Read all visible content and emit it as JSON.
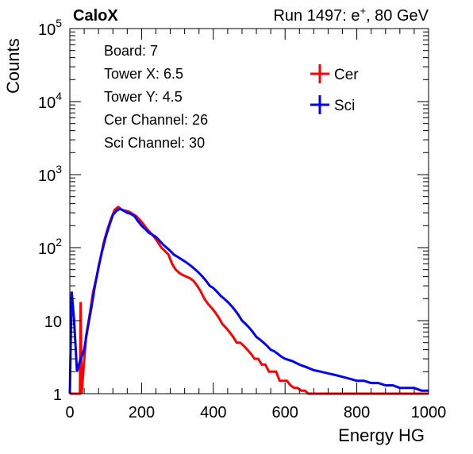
{
  "header": {
    "experiment": "CaloX",
    "run_label": "Run 1497: e",
    "run_sup": "+",
    "run_energy": ", 80 GeV"
  },
  "info_box": [
    "Board: 7",
    "Tower X: 6.5",
    "Tower Y: 4.5",
    "Cer Channel: 26",
    "Sci Channel: 30"
  ],
  "chart_data": {
    "type": "line",
    "xlabel": "Energy HG",
    "ylabel": "Counts",
    "xlim": [
      0,
      1000
    ],
    "ylim": [
      1,
      100000
    ],
    "yscale": "log",
    "x_ticks": [
      "0",
      "200",
      "400",
      "600",
      "800",
      "1000"
    ],
    "y_ticks": [
      {
        "value": 1,
        "base": "1",
        "exp": ""
      },
      {
        "value": 10,
        "base": "10",
        "exp": ""
      },
      {
        "value": 100,
        "base": "10",
        "exp": "2"
      },
      {
        "value": 1000,
        "base": "10",
        "exp": "3"
      },
      {
        "value": 10000,
        "base": "10",
        "exp": "4"
      },
      {
        "value": 100000,
        "base": "10",
        "exp": "5"
      }
    ],
    "legend_position": "top-right",
    "series": [
      {
        "name": "Cer",
        "color": "#ff0000",
        "points": [
          [
            0,
            0
          ],
          [
            15,
            0
          ],
          [
            28,
            0
          ],
          [
            30,
            18
          ],
          [
            33,
            0
          ],
          [
            45,
            6
          ],
          [
            55,
            12
          ],
          [
            65,
            25
          ],
          [
            75,
            40
          ],
          [
            85,
            70
          ],
          [
            95,
            120
          ],
          [
            105,
            180
          ],
          [
            115,
            250
          ],
          [
            125,
            330
          ],
          [
            135,
            360
          ],
          [
            145,
            330
          ],
          [
            155,
            320
          ],
          [
            165,
            310
          ],
          [
            175,
            290
          ],
          [
            185,
            270
          ],
          [
            195,
            240
          ],
          [
            205,
            210
          ],
          [
            215,
            180
          ],
          [
            225,
            160
          ],
          [
            235,
            140
          ],
          [
            245,
            120
          ],
          [
            255,
            100
          ],
          [
            265,
            90
          ],
          [
            275,
            80
          ],
          [
            285,
            60
          ],
          [
            295,
            50
          ],
          [
            305,
            45
          ],
          [
            315,
            42
          ],
          [
            325,
            40
          ],
          [
            335,
            38
          ],
          [
            345,
            35
          ],
          [
            355,
            30
          ],
          [
            365,
            25
          ],
          [
            375,
            20
          ],
          [
            385,
            17
          ],
          [
            395,
            15
          ],
          [
            405,
            13
          ],
          [
            415,
            11
          ],
          [
            425,
            9
          ],
          [
            435,
            8
          ],
          [
            445,
            7
          ],
          [
            455,
            6
          ],
          [
            465,
            5
          ],
          [
            475,
            5
          ],
          [
            485,
            4.5
          ],
          [
            495,
            4
          ],
          [
            505,
            3.5
          ],
          [
            515,
            3
          ],
          [
            525,
            3
          ],
          [
            535,
            2.5
          ],
          [
            545,
            2.5
          ],
          [
            555,
            2
          ],
          [
            565,
            2
          ],
          [
            575,
            2
          ],
          [
            585,
            1.5
          ],
          [
            595,
            1.5
          ],
          [
            605,
            1.5
          ],
          [
            615,
            1.3
          ],
          [
            625,
            1.2
          ],
          [
            635,
            1.2
          ],
          [
            645,
            1.1
          ],
          [
            655,
            1.1
          ],
          [
            665,
            1
          ],
          [
            675,
            1
          ],
          [
            700,
            1
          ],
          [
            750,
            1
          ],
          [
            800,
            1
          ],
          [
            850,
            1
          ],
          [
            900,
            1
          ],
          [
            950,
            1
          ],
          [
            1000,
            1
          ]
        ]
      },
      {
        "name": "Sci",
        "color": "#0000ff",
        "points": [
          [
            0,
            0
          ],
          [
            5,
            25
          ],
          [
            12,
            10
          ],
          [
            20,
            2
          ],
          [
            30,
            3
          ],
          [
            40,
            4
          ],
          [
            50,
            8
          ],
          [
            60,
            15
          ],
          [
            70,
            30
          ],
          [
            80,
            55
          ],
          [
            90,
            90
          ],
          [
            100,
            140
          ],
          [
            110,
            200
          ],
          [
            120,
            280
          ],
          [
            130,
            320
          ],
          [
            140,
            340
          ],
          [
            150,
            320
          ],
          [
            160,
            300
          ],
          [
            170,
            290
          ],
          [
            180,
            270
          ],
          [
            190,
            230
          ],
          [
            200,
            200
          ],
          [
            210,
            180
          ],
          [
            220,
            160
          ],
          [
            230,
            150
          ],
          [
            240,
            140
          ],
          [
            250,
            125
          ],
          [
            260,
            110
          ],
          [
            270,
            100
          ],
          [
            280,
            90
          ],
          [
            290,
            80
          ],
          [
            300,
            75
          ],
          [
            310,
            70
          ],
          [
            320,
            65
          ],
          [
            330,
            60
          ],
          [
            340,
            55
          ],
          [
            350,
            50
          ],
          [
            360,
            45
          ],
          [
            370,
            40
          ],
          [
            380,
            35
          ],
          [
            390,
            30
          ],
          [
            400,
            28
          ],
          [
            410,
            25
          ],
          [
            420,
            22
          ],
          [
            430,
            20
          ],
          [
            440,
            18
          ],
          [
            450,
            16
          ],
          [
            460,
            14
          ],
          [
            470,
            12
          ],
          [
            480,
            10
          ],
          [
            490,
            9
          ],
          [
            500,
            8
          ],
          [
            510,
            7
          ],
          [
            520,
            6
          ],
          [
            530,
            5.5
          ],
          [
            540,
            5
          ],
          [
            550,
            4.5
          ],
          [
            560,
            4
          ],
          [
            570,
            3.8
          ],
          [
            580,
            3.5
          ],
          [
            590,
            3.2
          ],
          [
            600,
            3
          ],
          [
            620,
            2.8
          ],
          [
            640,
            2.5
          ],
          [
            660,
            2.3
          ],
          [
            680,
            2.1
          ],
          [
            700,
            2
          ],
          [
            720,
            1.9
          ],
          [
            740,
            1.8
          ],
          [
            760,
            1.7
          ],
          [
            780,
            1.6
          ],
          [
            800,
            1.5
          ],
          [
            820,
            1.5
          ],
          [
            840,
            1.4
          ],
          [
            860,
            1.4
          ],
          [
            880,
            1.3
          ],
          [
            900,
            1.3
          ],
          [
            920,
            1.2
          ],
          [
            940,
            1.2
          ],
          [
            960,
            1.2
          ],
          [
            980,
            1.1
          ],
          [
            1000,
            1.1
          ]
        ]
      }
    ]
  }
}
